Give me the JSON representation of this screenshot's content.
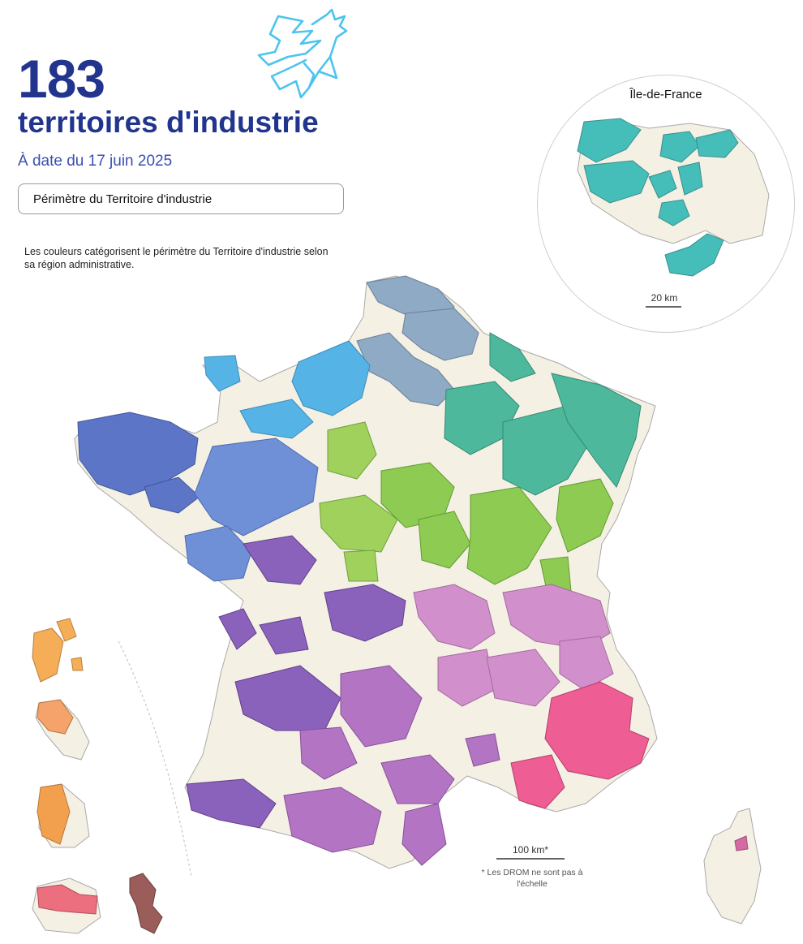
{
  "header": {
    "count": "183",
    "title": "territoires d'industrie",
    "date": "À date du 17 juin 2025",
    "legend_label": "Périmètre du Territoire d'industrie",
    "note": "Les couleurs catégorisent le périmètre du Territoire d'industrie selon sa région administrative."
  },
  "inset": {
    "title": "Île-de-France",
    "scale": "20 km"
  },
  "scale": {
    "label": "100 km*",
    "note": "* Les DROM ne sont pas à l'échelle"
  },
  "colors": {
    "title": "#22358e",
    "land": "#f4f0e4",
    "border": "#a9a9a9",
    "hauts_de_france": "#8faac4",
    "normandie": "#55b3e6",
    "bretagne": "#5c75c6",
    "pays_de_la_loire": "#6f8fd6",
    "centre_val_de_loire": "#9fd15c",
    "ile_de_france": "#45bdb9",
    "grand_est": "#4db89c",
    "bourgogne_franche_comte": "#8ecb52",
    "auvergne_rhone_alpes": "#d190cc",
    "nouvelle_aquitaine": "#8b62bb",
    "occitanie": "#b474c4",
    "paca": "#ee5d94",
    "guadeloupe": "#f5ad57",
    "martinique": "#f5a36a",
    "guyane": "#f3a04e",
    "la_reunion": "#ec6f7f",
    "mayotte": "#9a5d5a",
    "corse": "#d46aa2"
  },
  "icons": {
    "logo": "coq-icon"
  }
}
